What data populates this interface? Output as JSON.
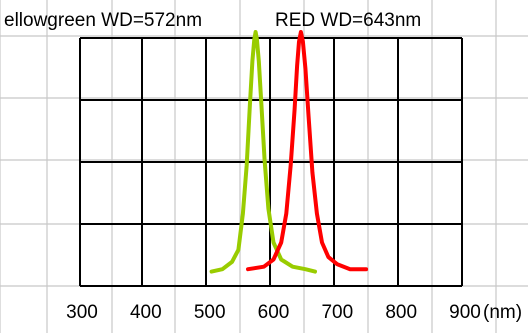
{
  "chart_data": {
    "type": "line",
    "title": "",
    "xlabel": "",
    "ylabel": "",
    "x_unit": "(nm)",
    "xlim": [
      300,
      900
    ],
    "x_ticks": [
      300,
      400,
      500,
      600,
      700,
      800,
      900
    ],
    "x_tick_labels": [
      "300",
      "400",
      "500",
      "600",
      "700",
      "800",
      "900"
    ],
    "y_ticks": [],
    "grid": true,
    "legend": "none",
    "annotations": [
      {
        "text": "ellowgreen WD=572nm",
        "series": "ellowgreen"
      },
      {
        "text": "RED WD=643nm",
        "series": "RED"
      }
    ],
    "series": [
      {
        "name": "ellowgreen",
        "color": "#99cc00",
        "x": [
          503,
          520,
          535,
          545,
          552,
          558,
          563,
          567,
          570,
          572,
          574,
          577,
          581,
          586,
          592,
          600,
          612,
          630,
          650,
          665
        ],
        "y": [
          0.01,
          0.02,
          0.05,
          0.1,
          0.25,
          0.45,
          0.7,
          0.88,
          0.97,
          1.0,
          0.97,
          0.88,
          0.7,
          0.47,
          0.27,
          0.13,
          0.06,
          0.03,
          0.02,
          0.01
        ]
      },
      {
        "name": "RED",
        "color": "#ff0000",
        "x": [
          560,
          585,
          600,
          612,
          620,
          627,
          633,
          637,
          640,
          643,
          646,
          650,
          655,
          661,
          668,
          676,
          686,
          700,
          720,
          745
        ],
        "y": [
          0.02,
          0.03,
          0.06,
          0.13,
          0.25,
          0.45,
          0.68,
          0.86,
          0.96,
          1.0,
          0.96,
          0.85,
          0.65,
          0.42,
          0.25,
          0.13,
          0.07,
          0.04,
          0.02,
          0.02
        ]
      }
    ]
  }
}
